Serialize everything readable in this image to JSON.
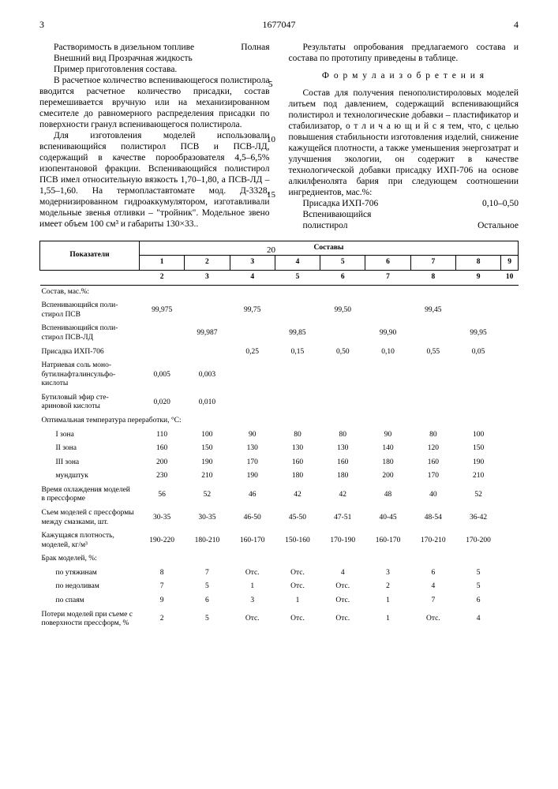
{
  "header": {
    "page_left": "3",
    "patent_no": "1677047",
    "page_right": "4"
  },
  "gutter": {
    "n5": "5",
    "n10": "10",
    "n15": "15",
    "n20": "20"
  },
  "left": {
    "kv1_k": "Растворимость в дизельном топливе",
    "kv1_v": "Полная",
    "kv2": "Внешний вид     Прозрачная жидкость",
    "prep": "Пример приготовления состава.",
    "p1": "В расчетное количество вспенивающегося полистирола вводится расчетное количество присадки, состав перемешивается вручную или на механизированном смесителе до равномерного распределения присадки по поверхности гранул вспенивающегося полистирола.",
    "p2": "Для изготовления моделей использовали вспенивающийся полистирол ПСВ и ПСВ-ЛД, содержащий в качестве порообразователя 4,5–6,5% изопентановой фракции. Вспенивающийся полистирол ПСВ имел относительную вязкость 1,70–1,80, а ПСВ-ЛД – 1,55–1,60. На термопластавтомате мод. Д-3328, модернизированном гидроаккумулятором, изготавливали модельные звенья отливки – \"тройник\". Модельное звено имеет объем 100 см³ и габариты 130×33.."
  },
  "right": {
    "p1": "Результаты опробования предлагаемого состава и состава по прототипу приведены в таблице.",
    "formula_title": "Ф о р м у л а   и з о б р е т е н и я",
    "p2": "Состав для получения пенополистироловых моделей литьем под давлением, содержащий вспенивающийся полистирол и технологические добавки – пластификатор и стабилизатор, о т л и ч а ю щ и й с я тем, что, с целью повышения стабильности изготовления изделий, снижение кажущейся плотности, а также уменьшения энергозатрат и улучшения экологии, он содержит в качестве технологической добавки присадку ИХП-706 на основе алкилфенолята бария при следующем соотношении ингредиентов, мас.%:",
    "f1_k": "Присадка ИХП-706",
    "f1_v": "0,10–0,50",
    "f2_k": "Вспенивающийся",
    "f3_k": "полистирол",
    "f3_v": "Остальное"
  },
  "table": {
    "label_indicators": "Показатели",
    "label_compositions": "Составы",
    "head1": [
      "1",
      "2",
      "3",
      "4",
      "5",
      "6",
      "7",
      "8",
      "9"
    ],
    "head2": [
      "2",
      "3",
      "4",
      "5",
      "6",
      "7",
      "8",
      "9",
      "10"
    ],
    "composition_title": "Состав, мас.%:",
    "rows": [
      {
        "h": "Вспенивающийся поли­стирол ПСВ",
        "v": [
          "99,975",
          "",
          "99,75",
          "",
          "99,50",
          "",
          "99,45",
          "",
          ""
        ]
      },
      {
        "h": "Вспенивающийся поли­стирол ПСВ-ЛД",
        "v": [
          "",
          "99,987",
          "",
          "99,85",
          "",
          "99,90",
          "",
          "99,95",
          ""
        ]
      },
      {
        "h": "Присадка ИХП-706",
        "v": [
          "",
          "",
          "0,25",
          "0,15",
          "0,50",
          "0,10",
          "0,55",
          "0,05",
          ""
        ]
      },
      {
        "h": "Натриевая соль моно­бутилнафталинсульфо­кислоты",
        "v": [
          "0,005",
          "0,003",
          "",
          "",
          "",
          "",
          "",
          "",
          ""
        ]
      },
      {
        "h": "Бутиловый эфир сте­ариновой кислоты",
        "v": [
          "0,020",
          "0,010",
          "",
          "",
          "",
          "",
          "",
          "",
          ""
        ]
      }
    ],
    "temp_title": "Оптимальная темпера­тура переработки, °С:",
    "temp_rows": [
      {
        "h": "I зона",
        "v": [
          "110",
          "100",
          "90",
          "80",
          "80",
          "90",
          "80",
          "100",
          ""
        ]
      },
      {
        "h": "II зона",
        "v": [
          "160",
          "150",
          "130",
          "130",
          "130",
          "140",
          "120",
          "150",
          ""
        ]
      },
      {
        "h": "III зона",
        "v": [
          "200",
          "190",
          "170",
          "160",
          "160",
          "180",
          "160",
          "190",
          ""
        ]
      },
      {
        "h": "мундштук",
        "v": [
          "230",
          "210",
          "190",
          "180",
          "180",
          "200",
          "170",
          "210",
          ""
        ]
      }
    ],
    "more_rows": [
      {
        "h": "Время охлаждения моделей в прессфор­ме",
        "v": [
          "56",
          "52",
          "46",
          "42",
          "42",
          "48",
          "40",
          "52",
          ""
        ]
      },
      {
        "h": "Съем моделей с пресс­формы между смазками, шт.",
        "v": [
          "30-35",
          "30-35",
          "46-50",
          "45-50",
          "47-51",
          "40-45",
          "48-54",
          "36-42",
          ""
        ]
      },
      {
        "h": "Кажущаяся плот­ность, моделей, кг/м³",
        "v": [
          "190-220",
          "180-210",
          "160-170",
          "150-160",
          "170-190",
          "160-170",
          "170-210",
          "170-200",
          ""
        ]
      }
    ],
    "defect_title": "Брак моделей, %:",
    "defect_rows": [
      {
        "h": "по утяжинам",
        "v": [
          "8",
          "7",
          "Отс.",
          "Отс.",
          "4",
          "3",
          "6",
          "5",
          ""
        ]
      },
      {
        "h": "по недоливам",
        "v": [
          "7",
          "5",
          "1",
          "Отс.",
          "Отс.",
          "2",
          "4",
          "5",
          ""
        ]
      },
      {
        "h": "по спаям",
        "v": [
          "9",
          "6",
          "3",
          "1",
          "Отс.",
          "1",
          "7",
          "6",
          ""
        ]
      }
    ],
    "loss_row": {
      "h": "Потери моделей при съеме с поверхности прессформ, %",
      "v": [
        "2",
        "5",
        "Отс.",
        "Отс.",
        "Отс.",
        "1",
        "Отс.",
        "4",
        ""
      ]
    }
  }
}
